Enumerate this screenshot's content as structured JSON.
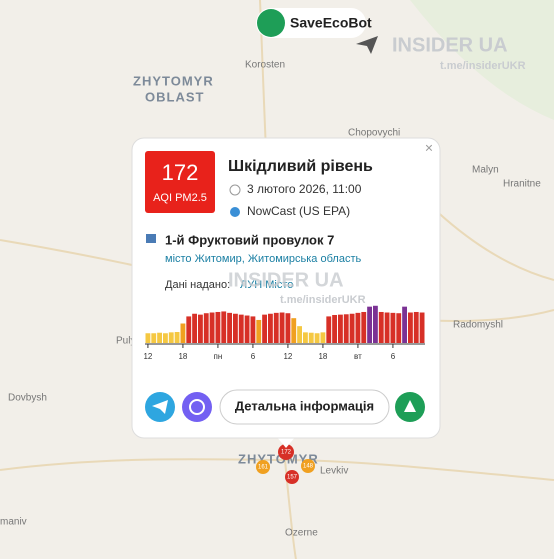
{
  "map": {
    "labels": [
      "ZHYTOMYR",
      "OBLAST",
      "Korosten",
      "Chopovychi",
      "Malyn",
      "Hranitne",
      "Radomyshl",
      "Dovbysh",
      "Puly",
      "ZHYTOMYR",
      "Levkiv",
      "Ozerne",
      "maniv"
    ],
    "watermarks": [
      "SaveEcoBot",
      "INSIDER UA",
      "t.me/insiderUKR",
      "t.me/insiderUKR"
    ],
    "markers": [
      "172",
      "161",
      "157",
      "148"
    ]
  },
  "popup": {
    "aqi": "172",
    "aqi_label": "AQI PM2.5",
    "level": "Шкідливий рівень",
    "date": "3 лютого 2026, 11:00",
    "method": "NowCast (US EPA)",
    "address": "1-й Фруктовий провулок 7",
    "locality": "місто Житомир, Житомирська область",
    "source_label": "Дані надано:",
    "source_link": "ЛУН Місто",
    "button": "Детальна інформація"
  },
  "chart_data": {
    "type": "bar",
    "categories": [
      "12",
      null,
      null,
      null,
      null,
      null,
      "18",
      null,
      null,
      null,
      null,
      null,
      "пн",
      null,
      null,
      null,
      null,
      null,
      "6",
      null,
      null,
      null,
      null,
      null,
      "12",
      null,
      null,
      null,
      null,
      null,
      "18",
      null,
      null,
      null,
      null,
      null,
      "вт",
      null,
      null,
      null,
      null,
      null,
      "6",
      null,
      null,
      null,
      null,
      null
    ],
    "values": [
      55,
      55,
      58,
      55,
      60,
      62,
      110,
      150,
      165,
      160,
      168,
      172,
      175,
      178,
      170,
      165,
      160,
      155,
      150,
      130,
      160,
      165,
      170,
      172,
      168,
      140,
      95,
      60,
      58,
      55,
      60,
      150,
      158,
      160,
      162,
      165,
      170,
      175,
      205,
      210,
      175,
      172,
      170,
      168,
      205,
      172,
      175,
      172
    ],
    "colors": [
      "#f5c842",
      "#f5c842",
      "#f5c842",
      "#f5c842",
      "#f5c842",
      "#f5c842",
      "#f0a020",
      "#d73027",
      "#d73027",
      "#d73027",
      "#d73027",
      "#d73027",
      "#d73027",
      "#d73027",
      "#d73027",
      "#d73027",
      "#d73027",
      "#d73027",
      "#d73027",
      "#f0a020",
      "#d73027",
      "#d73027",
      "#d73027",
      "#d73027",
      "#d73027",
      "#f0a020",
      "#f5c842",
      "#f5c842",
      "#f5c842",
      "#f5c842",
      "#f5c842",
      "#d73027",
      "#d73027",
      "#d73027",
      "#d73027",
      "#d73027",
      "#d73027",
      "#d73027",
      "#7b3294",
      "#7b3294",
      "#d73027",
      "#d73027",
      "#d73027",
      "#d73027",
      "#7b3294",
      "#d73027",
      "#d73027",
      "#d73027"
    ],
    "ylim": [
      0,
      220
    ]
  }
}
